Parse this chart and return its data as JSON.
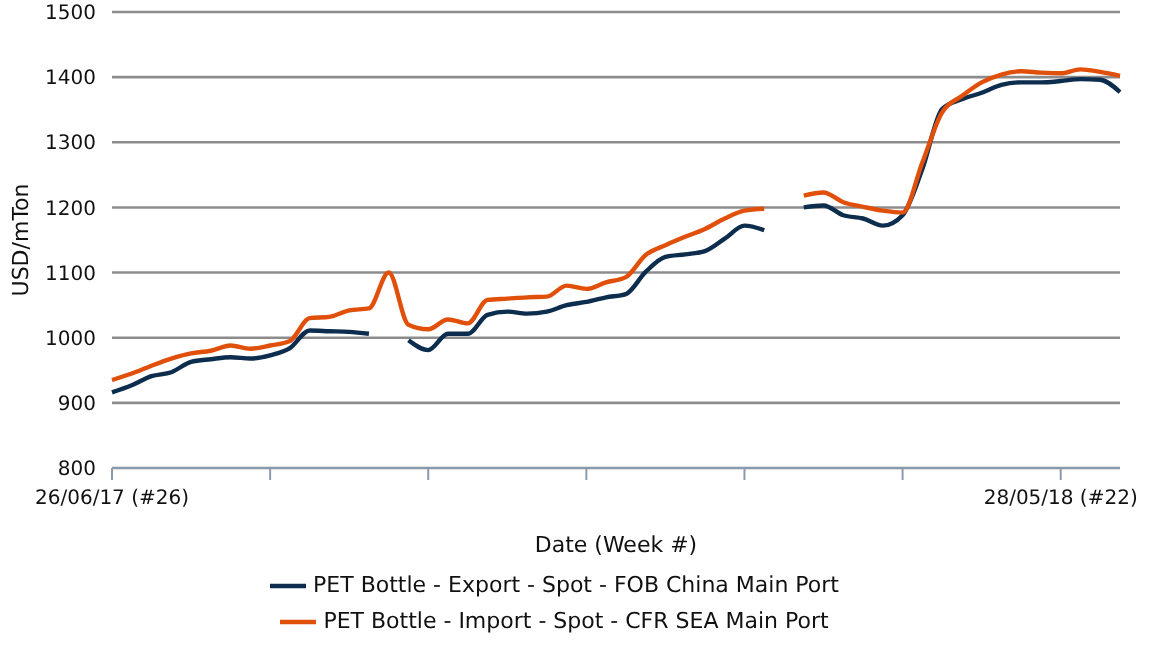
{
  "chart_data": {
    "type": "line",
    "xlabel": "Date (Week #)",
    "ylabel": "USD/mTon",
    "categories": [
      "26/06/17 (#26)",
      null,
      null,
      null,
      null,
      null,
      null,
      null,
      null,
      null,
      null,
      null,
      null,
      null,
      null,
      null,
      null,
      null,
      null,
      null,
      null,
      null,
      null,
      null,
      null,
      null,
      null,
      null,
      null,
      null,
      null,
      null,
      null,
      null,
      null,
      null,
      null,
      null,
      null,
      null,
      null,
      null,
      null,
      null,
      null,
      null,
      null,
      null,
      "28/05/18 (#22)",
      null,
      null,
      null
    ],
    "series": [
      {
        "name": "PET Bottle - Export - Spot - FOB China Main Port",
        "color": "#0c2d4e",
        "values": [
          916,
          927,
          941,
          947,
          963,
          967,
          970,
          968,
          973,
          984,
          1011,
          1010,
          1009,
          1006,
          null,
          996,
          981,
          1006,
          1006,
          1035,
          1040,
          1037,
          1040,
          1050,
          1055,
          1062,
          1067,
          1101,
          1124,
          1128,
          1133,
          1152,
          1172,
          1165,
          null,
          1200,
          1203,
          1188,
          1183,
          1172,
          1188,
          1259,
          1351,
          1366,
          1376,
          1388,
          1392,
          1392,
          1394,
          1397,
          1396,
          1377
        ]
      },
      {
        "name": "PET Bottle - Import - Spot - CFR SEA Main Port",
        "color": "#e0500a",
        "values": [
          935,
          945,
          957,
          968,
          976,
          980,
          988,
          983,
          988,
          995,
          1030,
          1032,
          1042,
          1045,
          1100,
          1020,
          1013,
          1028,
          1022,
          1058,
          1060,
          1062,
          1063,
          1080,
          1075,
          1085,
          1093,
          1127,
          1142,
          1155,
          1167,
          1183,
          1195,
          1198,
          null,
          1218,
          1223,
          1208,
          1201,
          1195,
          1192,
          1269,
          1346,
          1371,
          1392,
          1404,
          1409,
          1407,
          1406,
          1412,
          1408,
          1402
        ]
      }
    ],
    "ylim": [
      800,
      1500
    ],
    "yticks": [
      800,
      900,
      1000,
      1100,
      1200,
      1300,
      1400,
      1500
    ],
    "grid": "y",
    "legend": "bottom",
    "marker": "none",
    "line_style": "solid"
  }
}
